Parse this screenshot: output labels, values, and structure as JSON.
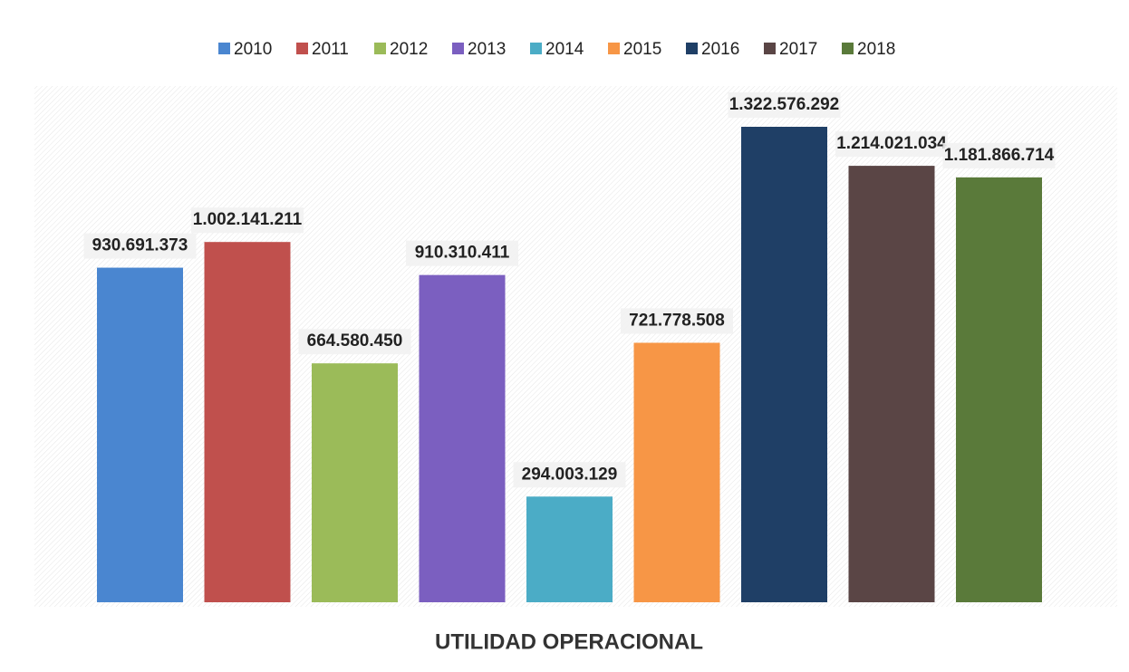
{
  "chart_data": {
    "type": "bar",
    "categories": [
      "UTILIDAD OPERACIONAL"
    ],
    "series": [
      {
        "name": "2010",
        "color": "#4a86d0",
        "values": [
          930691373
        ],
        "value_labels": [
          "930.691.373"
        ]
      },
      {
        "name": "2011",
        "color": "#c0504d",
        "values": [
          1002141211
        ],
        "value_labels": [
          "1.002.141.211"
        ]
      },
      {
        "name": "2012",
        "color": "#9bbb59",
        "values": [
          664580450
        ],
        "value_labels": [
          "664.580.450"
        ]
      },
      {
        "name": "2013",
        "color": "#7b5fc0",
        "values": [
          910310411
        ],
        "value_labels": [
          "910.310.411"
        ]
      },
      {
        "name": "2014",
        "color": "#4bacc6",
        "values": [
          294003129
        ],
        "value_labels": [
          "294.003.129"
        ]
      },
      {
        "name": "2015",
        "color": "#f79646",
        "values": [
          721778508
        ],
        "value_labels": [
          "721.778.508"
        ]
      },
      {
        "name": "2016",
        "color": "#1f3f66",
        "values": [
          1322576292
        ],
        "value_labels": [
          "1.322.576.292"
        ]
      },
      {
        "name": "2017",
        "color": "#5a4545",
        "values": [
          1214021034
        ],
        "value_labels": [
          "1.214.021.034"
        ]
      },
      {
        "name": "2018",
        "color": "#5a7a3a",
        "values": [
          1181866714
        ],
        "value_labels": [
          "1.181.866.714"
        ]
      }
    ]
  }
}
